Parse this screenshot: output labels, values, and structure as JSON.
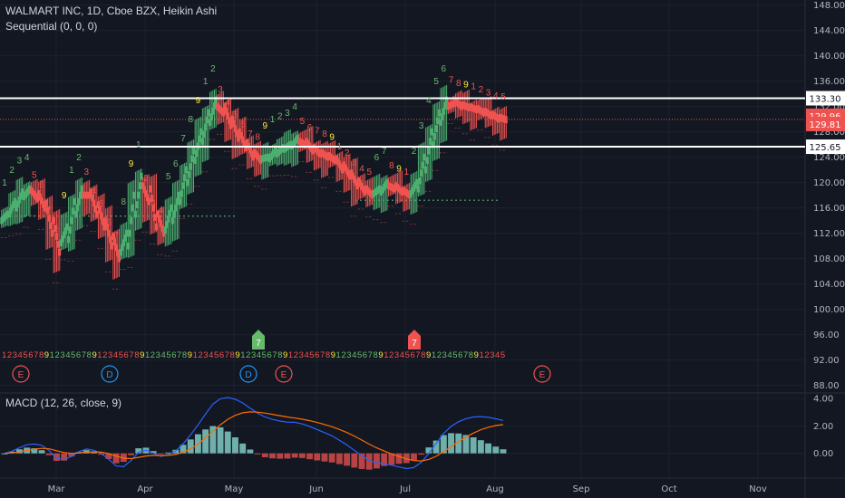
{
  "header": {
    "title": "WALMART INC, 1D, Cboe BZX, Heikin Ashi",
    "indicator": "Sequential (0, 0, 0)",
    "macd": "MACD (12, 26, close, 9)"
  },
  "colors": {
    "background": "#131722",
    "grid": "#1e222d",
    "up": "#26a69a",
    "up_candle": "#4caf70",
    "down": "#ef5350",
    "setup_up": "#66bb6a",
    "setup_down": "#ef5350",
    "nine": "#ffeb3b",
    "macd_line": "#2962ff",
    "signal_line": "#ff6d00",
    "hist_up": "#80cbc4",
    "hist_down": "#ffcdd2",
    "level": "#ffffff",
    "current": "#ef5350"
  },
  "chart_data": {
    "type": "candlestick",
    "style": "Heikin Ashi",
    "title": "WALMART INC, 1D, Cboe BZX, Heikin Ashi",
    "x_labels": [
      "Mar",
      "Apr",
      "May",
      "Jun",
      "Jul",
      "Aug",
      "Sep",
      "Oct",
      "Nov"
    ],
    "y_ticks": [
      88,
      92,
      96,
      100,
      104,
      108,
      112,
      116,
      120,
      124,
      128,
      132,
      136,
      140,
      144,
      148
    ],
    "y_tick_labels": [
      "88.00",
      "92.00",
      "96.00",
      "100.00",
      "104.00",
      "108.00",
      "112.00",
      "116.00",
      "120.00",
      "124.00",
      "128.00",
      "132.00",
      "136.00",
      "140.00",
      "144.00",
      "148.00"
    ],
    "ylim": [
      86.8,
      148.8
    ],
    "horizontal_levels": [
      133.3,
      125.65
    ],
    "level_labels": [
      "133.30",
      "125.65"
    ],
    "price_labels": [
      {
        "value": 129.96,
        "text": "129.96"
      },
      {
        "value": 129.81,
        "text": "129.81"
      }
    ],
    "close_path": [
      115,
      117,
      118.5,
      119,
      117.5,
      116,
      112,
      109,
      113,
      117,
      119,
      118,
      115,
      113,
      110,
      108,
      112,
      118,
      121,
      117,
      113,
      112,
      116,
      118,
      122,
      125,
      128,
      131,
      133,
      131,
      129,
      127,
      125.5,
      124,
      123.5,
      124,
      125,
      125.5,
      126,
      127,
      126,
      125,
      124.5,
      124,
      123.5,
      122,
      121,
      119.5,
      118.5,
      118,
      119,
      120,
      119,
      118.5,
      118,
      120,
      124,
      128,
      131,
      133,
      132.5,
      132,
      131.8,
      131.5,
      131,
      130.5,
      130,
      129.9
    ],
    "dotted_supports": [
      {
        "value": 114.7,
        "from": "Feb",
        "to": "May"
      },
      {
        "value": 117.2,
        "from": "Jun",
        "to": "Jul"
      }
    ],
    "sequential_counts": [
      "1",
      "2",
      "3",
      "4",
      "5",
      "6",
      "7",
      "8",
      "9"
    ],
    "sequential_markers": [
      "7",
      "7"
    ],
    "earnings_markers": [
      "E",
      "D",
      "D",
      "E",
      "E"
    ],
    "macd": {
      "name": "MACD (12, 26, close, 9)",
      "y_ticks": [
        0,
        2,
        4
      ],
      "y_tick_labels": [
        "0.00",
        "2.00",
        "4.00"
      ],
      "ylim": [
        -1.8,
        4.4
      ]
    }
  }
}
